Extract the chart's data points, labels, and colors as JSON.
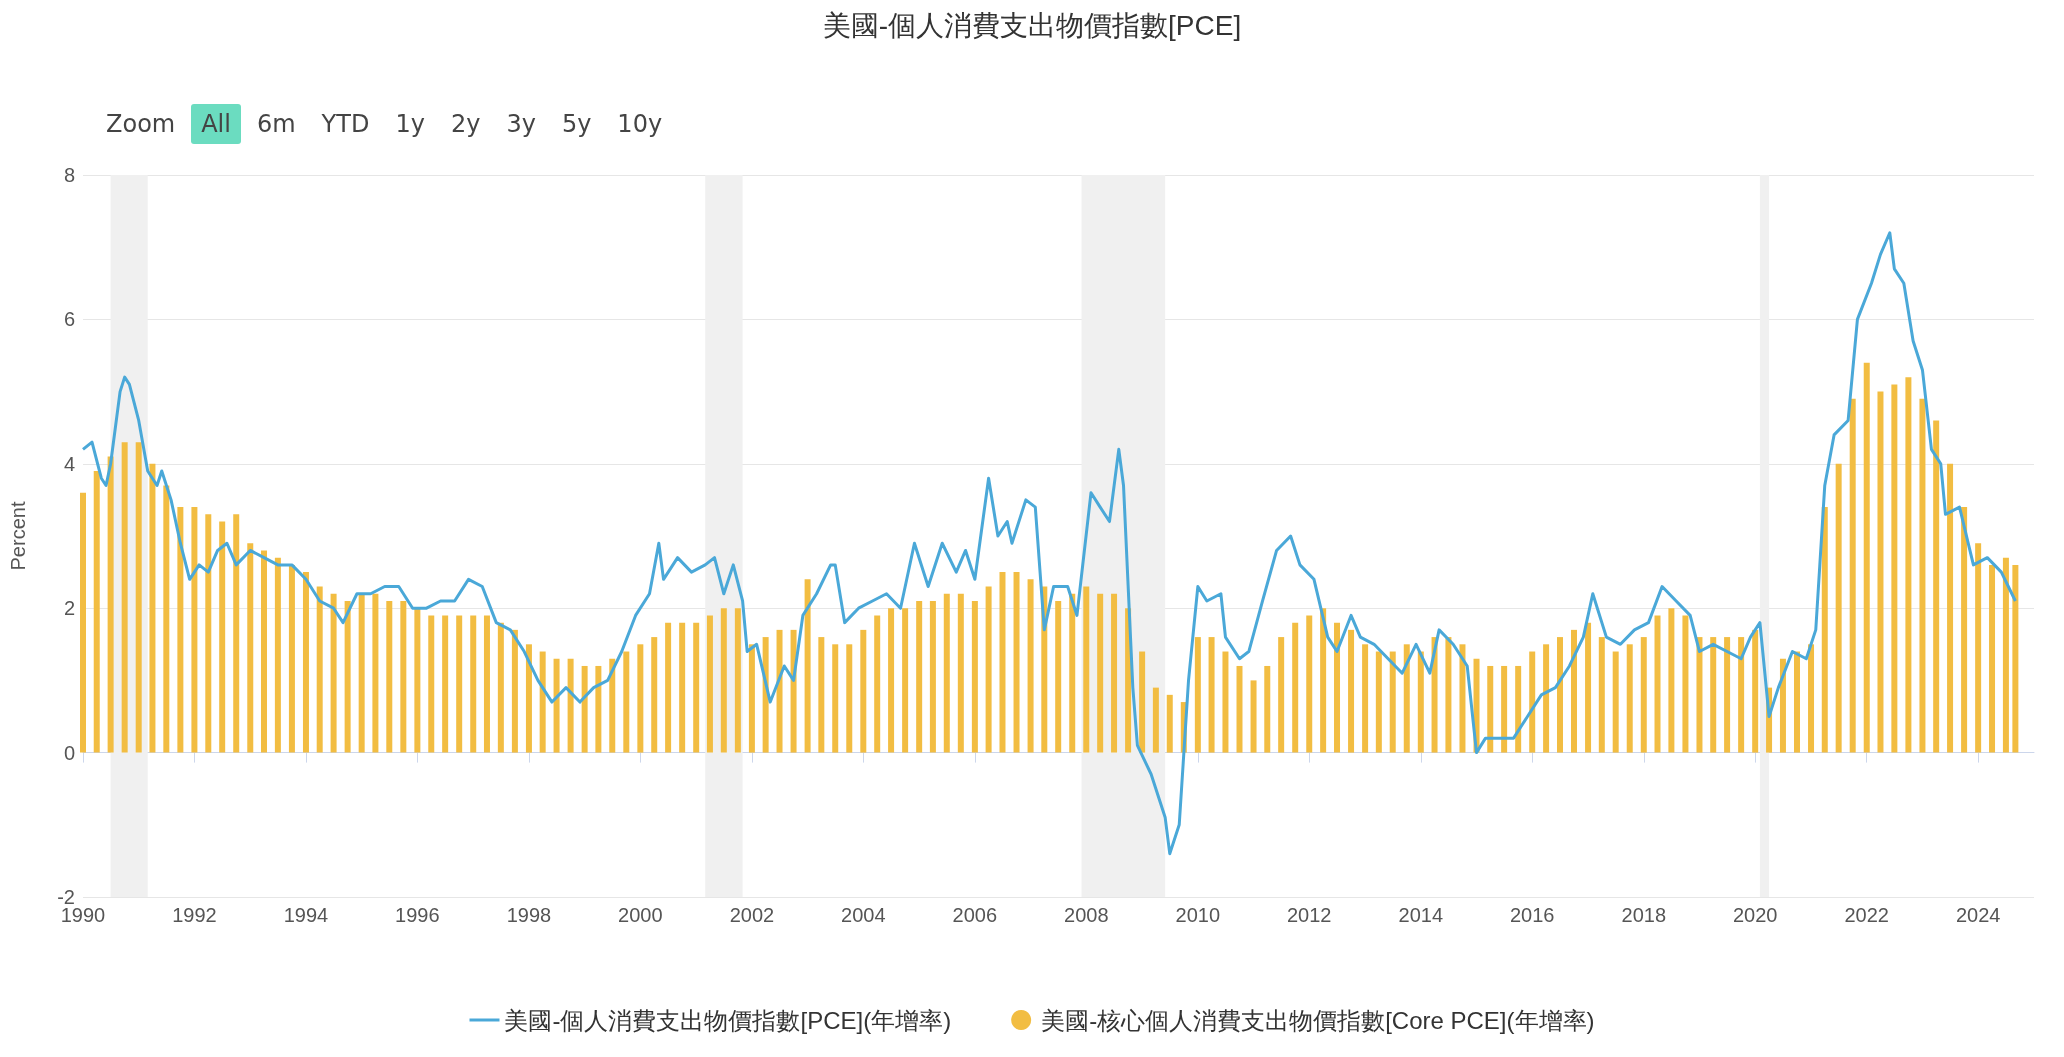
{
  "chart_data": {
    "type": "bar",
    "title": "美國-個人消費支出物價指數[PCE]",
    "ylabel": "Percent",
    "annotations": [
      "Zoom",
      "All",
      "6m",
      "YTD",
      "1y",
      "2y",
      "3y",
      "5y",
      "10y"
    ],
    "xlim": [
      "1990-01",
      "2025-01"
    ],
    "xticks": [
      "1990",
      "1992",
      "1994",
      "1996",
      "1998",
      "2000",
      "2002",
      "2004",
      "2006",
      "2008",
      "2010",
      "2012",
      "2014",
      "2016",
      "2018",
      "2020",
      "2022",
      "2024"
    ],
    "ylim": [
      -2,
      8
    ],
    "yticks": [
      -2,
      0,
      2,
      4,
      6,
      8
    ],
    "grid": "y",
    "legend": "bottom",
    "bands": [
      {
        "axis": "x",
        "from": "1990-07",
        "to": "1991-03",
        "color": "#f0f0f0"
      },
      {
        "axis": "x",
        "from": "2001-03",
        "to": "2001-11",
        "color": "#f0f0f0"
      },
      {
        "axis": "x",
        "from": "2007-12",
        "to": "2009-06",
        "color": "#f0f0f0"
      },
      {
        "axis": "x",
        "from": "2020-02",
        "to": "2020-04",
        "color": "#f0f0f0"
      }
    ],
    "series": [
      {
        "name": "美國-核心個人消費支出物價指數[Core PCE](年增率)",
        "color": "#f2bd42",
        "x": [
          "1990-01",
          "1990-04",
          "1990-07",
          "1990-10",
          "1991-01",
          "1991-04",
          "1991-07",
          "1991-10",
          "1992-01",
          "1992-04",
          "1992-07",
          "1992-10",
          "1993-01",
          "1993-04",
          "1993-07",
          "1993-10",
          "1994-01",
          "1994-04",
          "1994-07",
          "1994-10",
          "1995-01",
          "1995-04",
          "1995-07",
          "1995-10",
          "1996-01",
          "1996-04",
          "1996-07",
          "1996-10",
          "1997-01",
          "1997-04",
          "1997-07",
          "1997-10",
          "1998-01",
          "1998-04",
          "1998-07",
          "1998-10",
          "1999-01",
          "1999-04",
          "1999-07",
          "1999-10",
          "2000-01",
          "2000-04",
          "2000-07",
          "2000-10",
          "2001-01",
          "2001-04",
          "2001-07",
          "2001-10",
          "2002-01",
          "2002-04",
          "2002-07",
          "2002-10",
          "2003-01",
          "2003-04",
          "2003-07",
          "2003-10",
          "2004-01",
          "2004-04",
          "2004-07",
          "2004-10",
          "2005-01",
          "2005-04",
          "2005-07",
          "2005-10",
          "2006-01",
          "2006-04",
          "2006-07",
          "2006-10",
          "2007-01",
          "2007-04",
          "2007-07",
          "2007-10",
          "2008-01",
          "2008-04",
          "2008-07",
          "2008-10",
          "2009-01",
          "2009-04",
          "2009-07",
          "2009-10",
          "2010-01",
          "2010-04",
          "2010-07",
          "2010-10",
          "2011-01",
          "2011-04",
          "2011-07",
          "2011-10",
          "2012-01",
          "2012-04",
          "2012-07",
          "2012-10",
          "2013-01",
          "2013-04",
          "2013-07",
          "2013-10",
          "2014-01",
          "2014-04",
          "2014-07",
          "2014-10",
          "2015-01",
          "2015-04",
          "2015-07",
          "2015-10",
          "2016-01",
          "2016-04",
          "2016-07",
          "2016-10",
          "2017-01",
          "2017-04",
          "2017-07",
          "2017-10",
          "2018-01",
          "2018-04",
          "2018-07",
          "2018-10",
          "2019-01",
          "2019-04",
          "2019-07",
          "2019-10",
          "2020-01",
          "2020-04",
          "2020-07",
          "2020-10",
          "2021-01",
          "2021-04",
          "2021-07",
          "2021-10",
          "2022-01",
          "2022-04",
          "2022-07",
          "2022-10",
          "2023-01",
          "2023-04",
          "2023-07",
          "2023-10",
          "2024-01",
          "2024-04",
          "2024-07",
          "2024-09"
        ],
        "values": [
          3.6,
          3.9,
          4.1,
          4.3,
          4.3,
          4.0,
          3.7,
          3.4,
          3.4,
          3.3,
          3.2,
          3.3,
          2.9,
          2.8,
          2.7,
          2.6,
          2.5,
          2.3,
          2.2,
          2.1,
          2.2,
          2.2,
          2.1,
          2.1,
          2.0,
          1.9,
          1.9,
          1.9,
          1.9,
          1.9,
          1.8,
          1.7,
          1.5,
          1.4,
          1.3,
          1.3,
          1.2,
          1.2,
          1.3,
          1.4,
          1.5,
          1.6,
          1.8,
          1.8,
          1.8,
          1.9,
          2.0,
          2.0,
          1.5,
          1.6,
          1.7,
          1.7,
          2.4,
          1.6,
          1.5,
          1.5,
          1.7,
          1.9,
          2.0,
          2.0,
          2.1,
          2.1,
          2.2,
          2.2,
          2.1,
          2.3,
          2.5,
          2.5,
          2.4,
          2.3,
          2.1,
          2.2,
          2.3,
          2.2,
          2.2,
          2.0,
          1.4,
          0.9,
          0.8,
          0.7,
          1.6,
          1.6,
          1.4,
          1.2,
          1.0,
          1.2,
          1.6,
          1.8,
          1.9,
          2.0,
          1.8,
          1.7,
          1.5,
          1.4,
          1.4,
          1.5,
          1.4,
          1.6,
          1.6,
          1.5,
          1.3,
          1.2,
          1.2,
          1.2,
          1.4,
          1.5,
          1.6,
          1.7,
          1.8,
          1.6,
          1.4,
          1.5,
          1.6,
          1.9,
          2.0,
          1.9,
          1.6,
          1.6,
          1.6,
          1.6,
          1.7,
          0.9,
          1.3,
          1.4,
          1.5,
          3.4,
          4.0,
          4.9,
          5.4,
          5.0,
          5.1,
          5.2,
          4.9,
          4.6,
          4.0,
          3.4,
          2.9,
          2.6,
          2.7,
          2.6
        ]
      },
      {
        "name": "美國-個人消費支出物價指數[PCE](年增率)",
        "type": "line",
        "color": "#4aa8d8",
        "marker": "none",
        "x": [
          "1990-01",
          "1990-03",
          "1990-05",
          "1990-06",
          "1990-07",
          "1990-09",
          "1990-10",
          "1990-11",
          "1991-01",
          "1991-03",
          "1991-05",
          "1991-06",
          "1991-08",
          "1991-10",
          "1991-12",
          "1992-02",
          "1992-04",
          "1992-06",
          "1992-08",
          "1992-10",
          "1993-01",
          "1993-04",
          "1993-07",
          "1993-10",
          "1994-01",
          "1994-04",
          "1994-07",
          "1994-09",
          "1994-12",
          "1995-03",
          "1995-06",
          "1995-09",
          "1995-12",
          "1996-03",
          "1996-06",
          "1996-09",
          "1996-12",
          "1997-03",
          "1997-06",
          "1997-09",
          "1997-12",
          "1998-03",
          "1998-06",
          "1998-09",
          "1998-12",
          "1999-03",
          "1999-06",
          "1999-09",
          "1999-12",
          "2000-03",
          "2000-05",
          "2000-06",
          "2000-09",
          "2000-12",
          "2001-03",
          "2001-05",
          "2001-07",
          "2001-09",
          "2001-11",
          "2001-12",
          "2002-02",
          "2002-05",
          "2002-08",
          "2002-10",
          "2002-12",
          "2003-03",
          "2003-06",
          "2003-07",
          "2003-09",
          "2003-12",
          "2004-03",
          "2004-06",
          "2004-09",
          "2004-12",
          "2005-03",
          "2005-06",
          "2005-09",
          "2005-11",
          "2006-01",
          "2006-04",
          "2006-06",
          "2006-08",
          "2006-09",
          "2006-12",
          "2007-02",
          "2007-04",
          "2007-06",
          "2007-09",
          "2007-11",
          "2008-02",
          "2008-04",
          "2008-06",
          "2008-08",
          "2008-09",
          "2008-11",
          "2008-12",
          "2009-03",
          "2009-06",
          "2009-07",
          "2009-09",
          "2009-11",
          "2010-01",
          "2010-03",
          "2010-06",
          "2010-07",
          "2010-10",
          "2010-12",
          "2011-03",
          "2011-06",
          "2011-09",
          "2011-11",
          "2012-02",
          "2012-05",
          "2012-07",
          "2012-10",
          "2012-12",
          "2013-03",
          "2013-06",
          "2013-09",
          "2013-12",
          "2014-03",
          "2014-05",
          "2014-08",
          "2014-11",
          "2015-01",
          "2015-03",
          "2015-06",
          "2015-09",
          "2015-12",
          "2016-03",
          "2016-06",
          "2016-09",
          "2016-12",
          "2017-02",
          "2017-05",
          "2017-08",
          "2017-11",
          "2018-02",
          "2018-05",
          "2018-08",
          "2018-11",
          "2019-01",
          "2019-04",
          "2019-07",
          "2019-10",
          "2019-12",
          "2020-02",
          "2020-04",
          "2020-06",
          "2020-09",
          "2020-12",
          "2021-02",
          "2021-04",
          "2021-06",
          "2021-09",
          "2021-11",
          "2022-02",
          "2022-04",
          "2022-06",
          "2022-07",
          "2022-09",
          "2022-11",
          "2023-01",
          "2023-03",
          "2023-05",
          "2023-06",
          "2023-09",
          "2023-12",
          "2024-03",
          "2024-06",
          "2024-09"
        ],
        "values": [
          4.2,
          4.3,
          3.8,
          3.7,
          4.0,
          5.0,
          5.2,
          5.1,
          4.6,
          3.9,
          3.7,
          3.9,
          3.5,
          2.9,
          2.4,
          2.6,
          2.5,
          2.8,
          2.9,
          2.6,
          2.8,
          2.7,
          2.6,
          2.6,
          2.4,
          2.1,
          2.0,
          1.8,
          2.2,
          2.2,
          2.3,
          2.3,
          2.0,
          2.0,
          2.1,
          2.1,
          2.4,
          2.3,
          1.8,
          1.7,
          1.4,
          1.0,
          0.7,
          0.9,
          0.7,
          0.9,
          1.0,
          1.4,
          1.9,
          2.2,
          2.9,
          2.4,
          2.7,
          2.5,
          2.6,
          2.7,
          2.2,
          2.6,
          2.1,
          1.4,
          1.5,
          0.7,
          1.2,
          1.0,
          1.9,
          2.2,
          2.6,
          2.6,
          1.8,
          2.0,
          2.1,
          2.2,
          2.0,
          2.9,
          2.3,
          2.9,
          2.5,
          2.8,
          2.4,
          3.8,
          3.0,
          3.2,
          2.9,
          3.5,
          3.4,
          1.7,
          2.3,
          2.3,
          1.9,
          3.6,
          3.4,
          3.2,
          4.2,
          3.7,
          0.9,
          0.1,
          -0.3,
          -0.9,
          -1.4,
          -1.0,
          1.0,
          2.3,
          2.1,
          2.2,
          1.6,
          1.3,
          1.4,
          2.1,
          2.8,
          3.0,
          2.6,
          2.4,
          1.6,
          1.4,
          1.9,
          1.6,
          1.5,
          1.3,
          1.1,
          1.5,
          1.1,
          1.7,
          1.5,
          1.2,
          0.0,
          0.2,
          0.2,
          0.2,
          0.5,
          0.8,
          0.9,
          1.2,
          1.6,
          2.2,
          1.6,
          1.5,
          1.7,
          1.8,
          2.3,
          2.1,
          1.9,
          1.4,
          1.5,
          1.4,
          1.3,
          1.6,
          1.8,
          0.5,
          0.9,
          1.4,
          1.3,
          1.7,
          3.7,
          4.4,
          4.6,
          6.0,
          6.5,
          6.9,
          7.2,
          6.7,
          6.5,
          5.7,
          5.3,
          4.2,
          4.0,
          3.3,
          3.4,
          2.6,
          2.7,
          2.5,
          2.1
        ]
      }
    ]
  }
}
